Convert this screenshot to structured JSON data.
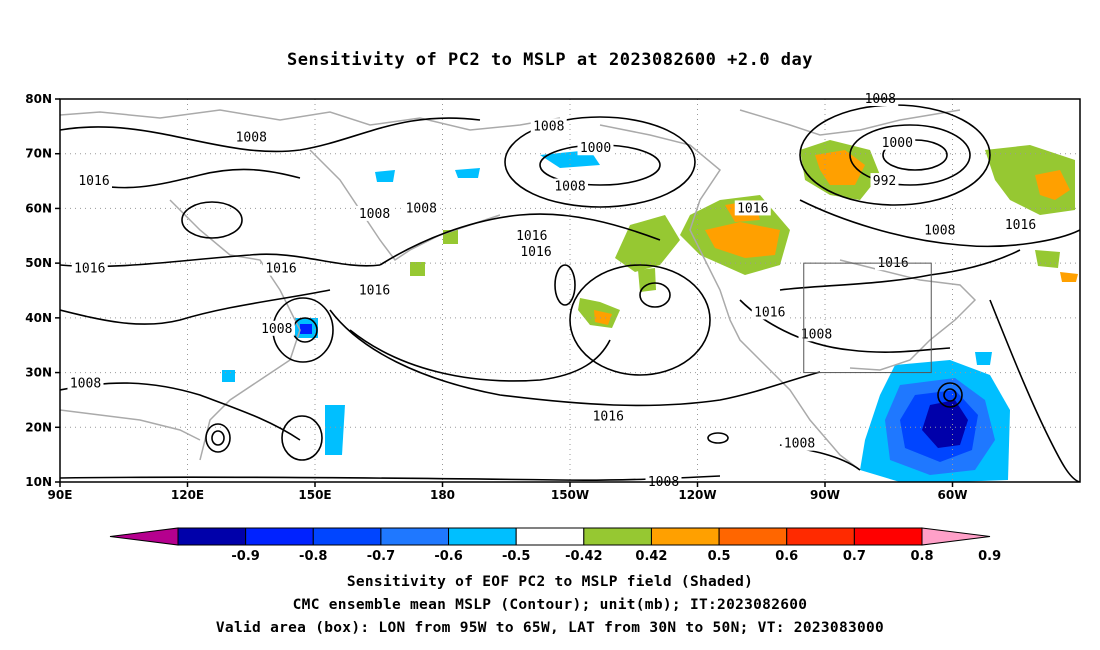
{
  "title": "Sensitivity of PC2 to MSLP at 2023082600 +2.0 day",
  "captions": {
    "line1": "Sensitivity of EOF PC2 to MSLP field (Shaded)",
    "line2": "CMC ensemble mean MSLP (Contour); unit(mb); IT:2023082600",
    "line3": "Valid area (box): LON from 95W to 65W, LAT from 30N to 50N; VT: 2023083000"
  },
  "axes": {
    "lat_ticks": [
      "80N",
      "70N",
      "60N",
      "50N",
      "40N",
      "30N",
      "20N",
      "10N"
    ],
    "lon_ticks": [
      "90E",
      "120E",
      "150E",
      "180",
      "150W",
      "120W",
      "90W",
      "60W"
    ]
  },
  "colorbar": {
    "labels": [
      "-0.9",
      "-0.8",
      "-0.7",
      "-0.6",
      "-0.5",
      "-0.42",
      "0.42",
      "0.5",
      "0.6",
      "0.7",
      "0.8",
      "0.9"
    ],
    "colors": [
      "#b5008e",
      "#0000aa",
      "#0022ff",
      "#0045ff",
      "#1f78ff",
      "#00bfff",
      "#ffffff",
      "#96c832",
      "#ffa000",
      "#ff6600",
      "#ff2a00",
      "#ff0000",
      "#ffa0c8"
    ]
  },
  "contour_labels": [
    {
      "text": "1008",
      "lon": 135,
      "lat": 73
    },
    {
      "text": "1016",
      "lon": 98,
      "lat": 65
    },
    {
      "text": "1008",
      "lon": 205,
      "lat": 75
    },
    {
      "text": "1000",
      "lon": 216,
      "lat": 71
    },
    {
      "text": "1008",
      "lon": 210,
      "lat": 64
    },
    {
      "text": "1008",
      "lon": 164,
      "lat": 59
    },
    {
      "text": "1008",
      "lon": 175,
      "lat": 60
    },
    {
      "text": "1016",
      "lon": 97,
      "lat": 49
    },
    {
      "text": "1016",
      "lon": 142,
      "lat": 49
    },
    {
      "text": "1016",
      "lon": 164,
      "lat": 45
    },
    {
      "text": "1016",
      "lon": 201,
      "lat": 55
    },
    {
      "text": "1016",
      "lon": 202,
      "lat": 52
    },
    {
      "text": "1008",
      "lon": 141,
      "lat": 38
    },
    {
      "text": "1008",
      "lon": 96,
      "lat": 28
    },
    {
      "text": "1016",
      "lon": 219,
      "lat": 22
    },
    {
      "text": "1016",
      "lon": 257,
      "lat": 41
    },
    {
      "text": "1016",
      "lon": 253,
      "lat": 60
    },
    {
      "text": "1008",
      "lon": 283,
      "lat": 80
    },
    {
      "text": "1000",
      "lon": 287,
      "lat": 72
    },
    {
      "text": "992",
      "lon": 284,
      "lat": 65
    },
    {
      "text": "1008",
      "lon": 297,
      "lat": 56
    },
    {
      "text": "1016",
      "lon": 286,
      "lat": 50
    },
    {
      "text": "1016",
      "lon": 316,
      "lat": 57
    },
    {
      "text": "1008",
      "lon": 268,
      "lat": 37
    },
    {
      "text": "1008",
      "lon": 264,
      "lat": 17
    },
    {
      "text": "1008",
      "lon": 232,
      "lat": 10
    }
  ],
  "valid_box": {
    "lon_min": 265,
    "lon_max": 295,
    "lat_min": 30,
    "lat_max": 50
  }
}
